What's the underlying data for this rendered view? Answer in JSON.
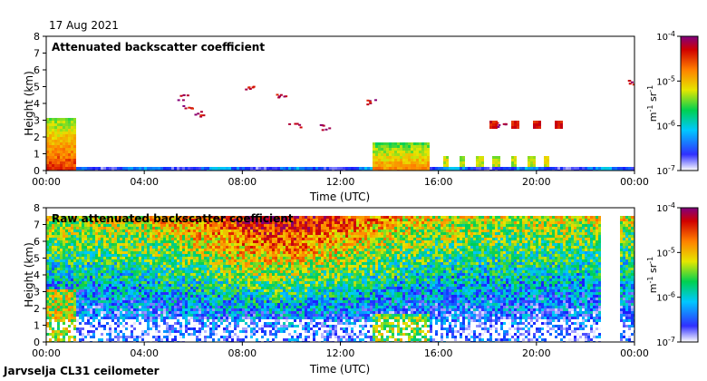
{
  "date_label": "17 Aug 2021",
  "footer_label": "Jarvselja CL31 ceilometer",
  "colors": {
    "colormap": [
      "#ffffff",
      "#1a1aff",
      "#00c8ff",
      "#00d050",
      "#e6e600",
      "#ff8000",
      "#d00000",
      "#800080"
    ]
  },
  "chart_data": [
    {
      "type": "heatmap",
      "title": "Attenuated backscatter coefficient",
      "xlabel": "Time (UTC)",
      "ylabel": "Height (km)",
      "x_ticks": [
        "00:00",
        "04:00",
        "08:00",
        "12:00",
        "16:00",
        "20:00",
        "00:00"
      ],
      "x_range_hours": [
        0,
        24
      ],
      "y_ticks": [
        "0",
        "1",
        "2",
        "3",
        "4",
        "5",
        "6",
        "7",
        "8"
      ],
      "ylim": [
        0,
        8
      ],
      "colorbar": {
        "label_base": "m",
        "label_exp1": "-1",
        "label_mid": " sr",
        "label_exp2": "-1",
        "ticks": [
          {
            "base": "10",
            "exp": "-4"
          },
          {
            "base": "10",
            "exp": "-5"
          },
          {
            "base": "10",
            "exp": "-6"
          },
          {
            "base": "10",
            "exp": "-7"
          }
        ],
        "log_range": [
          -7,
          -4
        ]
      }
    },
    {
      "type": "heatmap",
      "title": "Raw attenuated backscatter coefficient",
      "xlabel": "Time (UTC)",
      "ylabel": "Height (km)",
      "x_ticks": [
        "00:00",
        "04:00",
        "08:00",
        "12:00",
        "16:00",
        "20:00",
        "00:00"
      ],
      "x_range_hours": [
        0,
        24
      ],
      "y_ticks": [
        "0",
        "1",
        "2",
        "3",
        "4",
        "5",
        "6",
        "7",
        "8"
      ],
      "ylim": [
        0,
        8
      ],
      "data_gap_hours": [
        22.6,
        23.3
      ],
      "colorbar": {
        "label_base": "m",
        "label_exp1": "-1",
        "label_mid": " sr",
        "label_exp2": "-1",
        "ticks": [
          {
            "base": "10",
            "exp": "-4"
          },
          {
            "base": "10",
            "exp": "-5"
          },
          {
            "base": "10",
            "exp": "-6"
          },
          {
            "base": "10",
            "exp": "-7"
          }
        ],
        "log_range": [
          -7,
          -4
        ]
      }
    }
  ]
}
